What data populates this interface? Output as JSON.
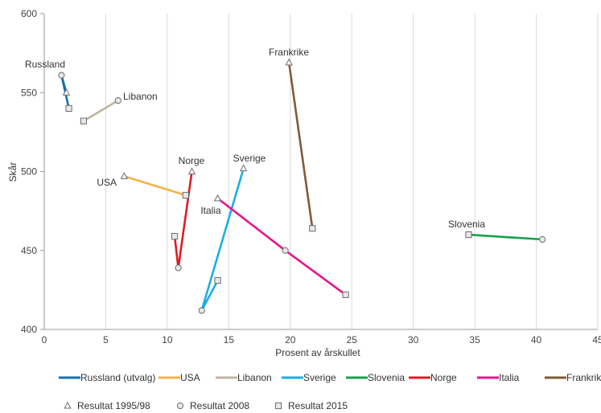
{
  "chart_data": {
    "type": "scatter",
    "title": "",
    "xlabel": "Prosent av årskullet",
    "ylabel": "Skår",
    "xlim": [
      0,
      45
    ],
    "ylim": [
      400,
      600
    ],
    "x_ticks": [
      "0",
      "5",
      "10",
      "15",
      "20",
      "25",
      "30",
      "35",
      "40",
      "45"
    ],
    "y_ticks": [
      "400",
      "450",
      "500",
      "550",
      "600"
    ],
    "grid": "vertical",
    "legend_position": "bottom",
    "series": [
      {
        "name": "Russland (utvalg)",
        "color": "#1a6fae",
        "label": "Russland",
        "points": [
          {
            "year": "1995/98",
            "x": 1.8,
            "y": 550
          },
          {
            "year": "2008",
            "x": 1.4,
            "y": 561
          },
          {
            "year": "2015",
            "x": 2.0,
            "y": 540
          }
        ]
      },
      {
        "name": "USA",
        "color": "#f4b246",
        "label": "USA",
        "points": [
          {
            "year": "1995/98",
            "x": 6.5,
            "y": 497
          },
          {
            "year": "2015",
            "x": 11.5,
            "y": 485
          }
        ]
      },
      {
        "name": "Libanon",
        "color": "#c2b49e",
        "label": "Libanon",
        "points": [
          {
            "year": "2008",
            "x": 6.0,
            "y": 545
          },
          {
            "year": "2015",
            "x": 3.2,
            "y": 532
          }
        ]
      },
      {
        "name": "Sverige",
        "color": "#1aaee5",
        "label": "Sverige",
        "points": [
          {
            "year": "1995/98",
            "x": 16.2,
            "y": 502
          },
          {
            "year": "2008",
            "x": 12.8,
            "y": 412
          },
          {
            "year": "2015",
            "x": 14.1,
            "y": 431
          }
        ]
      },
      {
        "name": "Slovenia",
        "color": "#16a34a",
        "label": "Slovenia",
        "points": [
          {
            "year": "2008",
            "x": 40.5,
            "y": 457
          },
          {
            "year": "2015",
            "x": 34.5,
            "y": 460
          }
        ]
      },
      {
        "name": "Norge",
        "color": "#e11b22",
        "label": "Norge",
        "points": [
          {
            "year": "1995/98",
            "x": 12.0,
            "y": 500
          },
          {
            "year": "2008",
            "x": 10.9,
            "y": 439
          },
          {
            "year": "2015",
            "x": 10.6,
            "y": 459
          }
        ]
      },
      {
        "name": "Italia",
        "color": "#e6158e",
        "label": "Italia",
        "points": [
          {
            "year": "1995/98",
            "x": 14.1,
            "y": 483
          },
          {
            "year": "2008",
            "x": 19.6,
            "y": 450
          },
          {
            "year": "2015",
            "x": 24.5,
            "y": 422
          }
        ]
      },
      {
        "name": "Frankrike",
        "color": "#7f5a3a",
        "label": "Frankrike",
        "points": [
          {
            "year": "1995/98",
            "x": 19.9,
            "y": 569
          },
          {
            "year": "2015",
            "x": 21.8,
            "y": 464
          }
        ]
      }
    ],
    "marker_legend": [
      {
        "year": "1995/98",
        "label": "Resultat 1995/98",
        "shape": "triangle"
      },
      {
        "year": "2008",
        "label": "Resultat 2008",
        "shape": "circle"
      },
      {
        "year": "2015",
        "label": "Resultat 2015",
        "shape": "square"
      }
    ]
  }
}
